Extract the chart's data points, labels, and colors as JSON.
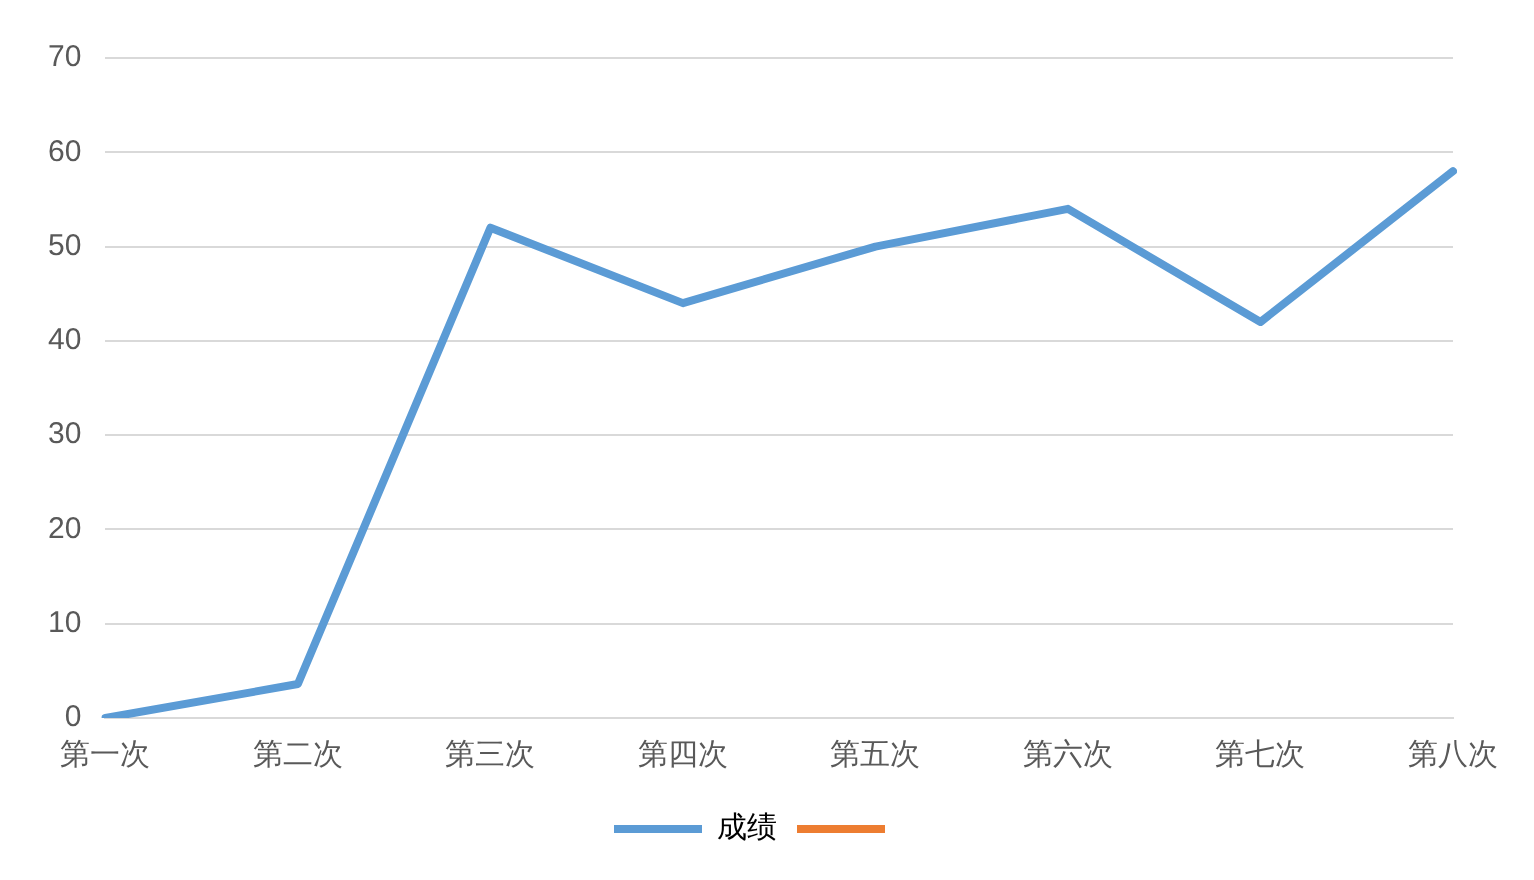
{
  "chart_data": {
    "type": "line",
    "categories": [
      "第一次",
      "第二次",
      "第三次",
      "第四次",
      "第五次",
      "第六次",
      "第七次",
      "第八次"
    ],
    "series": [
      {
        "name": "成绩",
        "color": "#5b9bd5",
        "values": [
          0,
          3.6,
          52,
          44,
          50,
          54,
          42,
          58
        ]
      },
      {
        "color": "#ed7d31",
        "values": [
          null,
          null,
          null,
          null,
          null,
          null,
          null,
          null
        ]
      }
    ],
    "ylim": [
      0,
      70
    ],
    "yticks": [
      0,
      10,
      20,
      30,
      40,
      50,
      60,
      70
    ],
    "grid": "y",
    "legend": "bottom",
    "marker": "none",
    "line_style": "solid"
  }
}
